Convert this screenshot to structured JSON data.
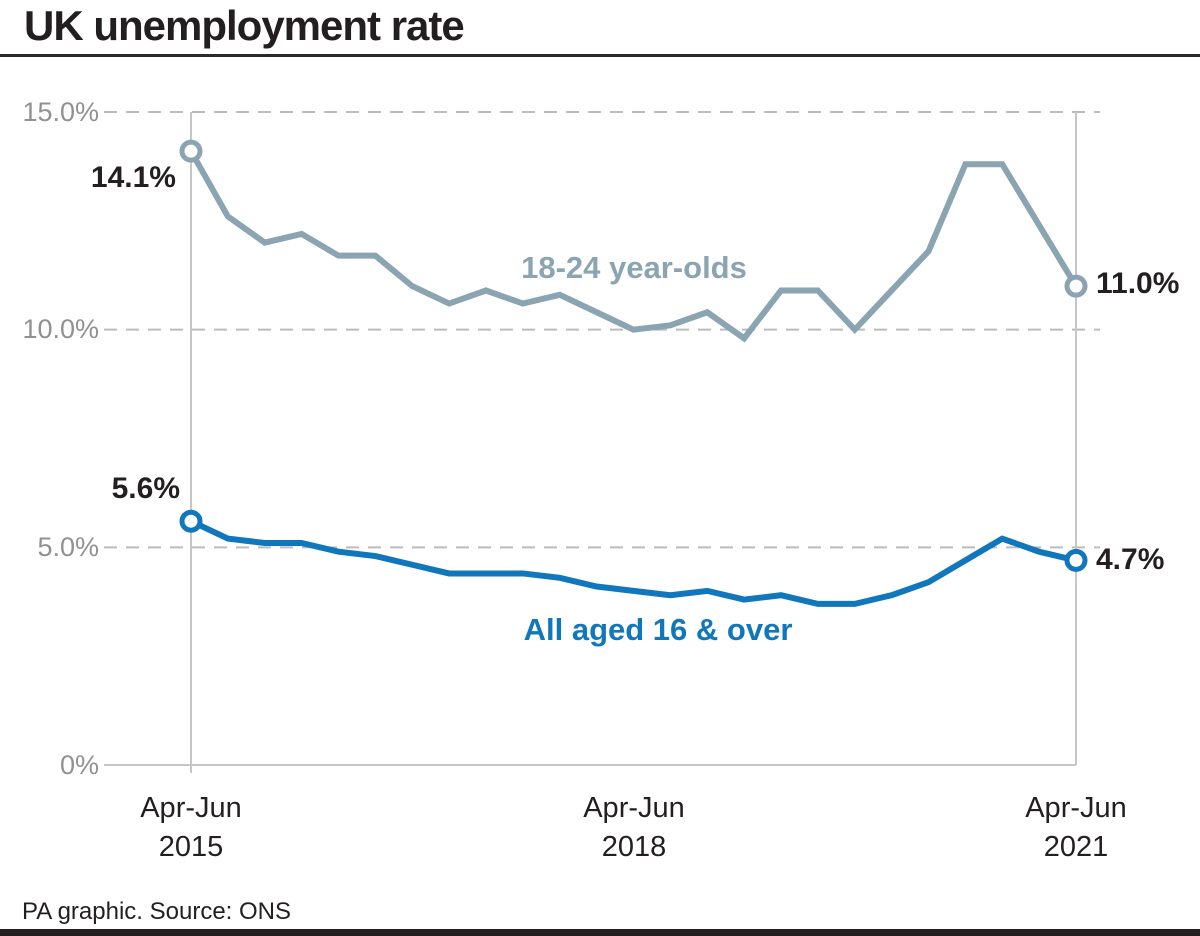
{
  "title": "UK unemployment rate",
  "footer": "PA graphic. Source: ONS",
  "chart_data": {
    "type": "line",
    "title": "UK unemployment rate",
    "x_period": "quarterly from Apr-Jun 2015 to Apr-Jun 2021",
    "ylim": [
      0,
      15
    ],
    "grid": "horizontal dashed gridlines at 5.0%, 10.0%, 15.0%; solid baseline at 0%",
    "legend_position": "labels inline next to lines",
    "y_ticks": [
      {
        "label": "15.0%",
        "value": 15
      },
      {
        "label": "10.0%",
        "value": 10
      },
      {
        "label": "5.0%",
        "value": 5
      },
      {
        "label": "0%",
        "value": 0
      }
    ],
    "x_ticks": [
      {
        "line1": "Apr-Jun",
        "line2": "2015",
        "index": 0
      },
      {
        "line1": "Apr-Jun",
        "line2": "2018",
        "index": 12
      },
      {
        "line1": "Apr-Jun",
        "line2": "2021",
        "index": 24
      }
    ],
    "series": [
      {
        "name": "18-24 year-olds",
        "color": "#8AA4B1",
        "first_value_label": "14.1%",
        "last_value_label": "11.0%",
        "values": [
          14.1,
          12.6,
          12.0,
          12.2,
          11.7,
          11.7,
          11.0,
          10.6,
          10.9,
          10.6,
          10.8,
          10.4,
          10.0,
          10.1,
          10.4,
          9.8,
          10.9,
          10.9,
          10.0,
          10.9,
          11.8,
          13.8,
          13.8,
          12.4,
          11.0
        ]
      },
      {
        "name": "All aged 16 & over",
        "color": "#1177BC",
        "first_value_label": "5.6%",
        "last_value_label": "4.7%",
        "values": [
          5.6,
          5.2,
          5.1,
          5.1,
          4.9,
          4.8,
          4.6,
          4.4,
          4.4,
          4.4,
          4.3,
          4.1,
          4.0,
          3.9,
          4.0,
          3.8,
          3.9,
          3.7,
          3.7,
          3.9,
          4.2,
          4.7,
          5.2,
          4.9,
          4.7
        ]
      }
    ],
    "axis_colors": {
      "grid_dashed": "#BCBCBC",
      "axis_solid": "#C6C6C6",
      "y_tick_text": "#919191",
      "x_tick_text": "#231F20"
    }
  }
}
